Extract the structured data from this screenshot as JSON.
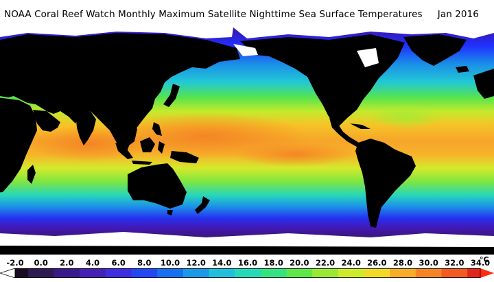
{
  "header": {
    "title": "NOAA Coral Reef Watch Monthly Maximum Satellite Nighttime Sea Surface Temperatures",
    "date": "Jan 2016"
  },
  "legend": {
    "ticks": [
      "-2.0",
      "0.0",
      "2.0",
      "4.0",
      "6.0",
      "8.0",
      "10.0",
      "12.0",
      "14.0",
      "16.0",
      "18.0",
      "20.0",
      "22.0",
      "24.0",
      "26.0",
      "28.0",
      "30.0",
      "32.0",
      "34.0"
    ],
    "unit": "°C",
    "colors": [
      "#1a0b22",
      "#2e1a52",
      "#3a1a8a",
      "#4421b4",
      "#3e2ee0",
      "#2248f5",
      "#1670f0",
      "#1b98e6",
      "#22bfdc",
      "#27d8b8",
      "#34e27f",
      "#5fe64a",
      "#98e935",
      "#cdea2c",
      "#f3d826",
      "#f6ad28",
      "#f48426",
      "#f15a22",
      "#e3261c"
    ],
    "ends": {
      "low": "#ffffff",
      "high": "#ff2a0e"
    }
  },
  "map": {
    "land_color": "#000000",
    "ice_color": "#ffffff",
    "background_color": "#ffffff"
  }
}
